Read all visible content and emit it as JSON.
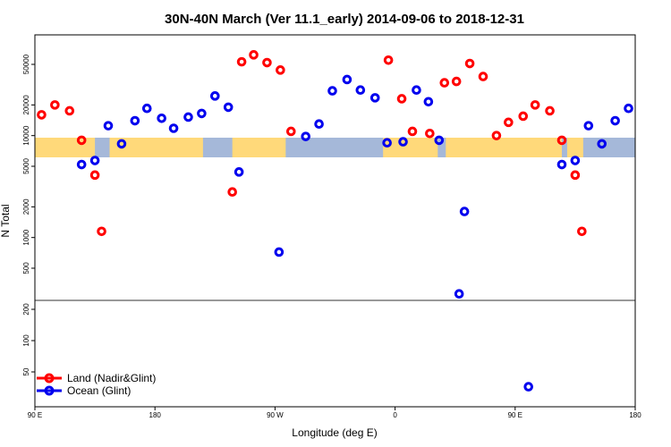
{
  "chart_data": {
    "type": "scatter",
    "title": "30N-40N March (Ver 11.1_early)   2014-09-06 to 2018-12-31",
    "xlabel": "Longitude (deg E)",
    "ylabel": "N Total",
    "xlim": [
      90,
      540
    ],
    "ylim": [
      25,
      90000
    ],
    "y_scale": "log-upper-linear-lower",
    "x_ticks": [
      {
        "value": 90,
        "label": "90 E"
      },
      {
        "value": 180,
        "label": "180"
      },
      {
        "value": 270,
        "label": "90 W"
      },
      {
        "value": 360,
        "label": "0"
      },
      {
        "value": 450,
        "label": "90 E"
      },
      {
        "value": 540,
        "label": "180"
      }
    ],
    "y_ticks_upper": [
      {
        "value": 500,
        "label": "500"
      },
      {
        "value": 1000,
        "label": "1000"
      },
      {
        "value": 2000,
        "label": "2000"
      },
      {
        "value": 5000,
        "label": "5000"
      },
      {
        "value": 10000,
        "label": "10000"
      },
      {
        "value": 20000,
        "label": "20000"
      },
      {
        "value": 50000,
        "label": "50000"
      }
    ],
    "y_ticks_lower": [
      {
        "value": 50,
        "label": "50"
      },
      {
        "value": 100,
        "label": "100"
      },
      {
        "value": 200,
        "label": "200"
      }
    ],
    "legend_position": "bottom-left",
    "series": [
      {
        "name": "Land (Nadir&Glint)",
        "color": "#ff0000",
        "points": [
          {
            "x": 95,
            "y": 16000
          },
          {
            "x": 105,
            "y": 20000
          },
          {
            "x": 116,
            "y": 17500
          },
          {
            "x": 125,
            "y": 9000
          },
          {
            "x": 135,
            "y": 4100
          },
          {
            "x": 140,
            "y": 1150
          },
          {
            "x": 238,
            "y": 2800
          },
          {
            "x": 245,
            "y": 53000
          },
          {
            "x": 254,
            "y": 62000
          },
          {
            "x": 264,
            "y": 52000
          },
          {
            "x": 274,
            "y": 44000
          },
          {
            "x": 282,
            "y": 11000
          },
          {
            "x": 355,
            "y": 55000
          },
          {
            "x": 365,
            "y": 23000
          },
          {
            "x": 373,
            "y": 11000
          },
          {
            "x": 386,
            "y": 10500
          },
          {
            "x": 397,
            "y": 33000
          },
          {
            "x": 406,
            "y": 34000
          },
          {
            "x": 416,
            "y": 51000
          },
          {
            "x": 426,
            "y": 38000
          },
          {
            "x": 436,
            "y": 10000
          },
          {
            "x": 445,
            "y": 13500
          },
          {
            "x": 456,
            "y": 15500
          },
          {
            "x": 465,
            "y": 20000
          },
          {
            "x": 476,
            "y": 17500
          },
          {
            "x": 485,
            "y": 9000
          },
          {
            "x": 495,
            "y": 4100
          },
          {
            "x": 500,
            "y": 1150
          }
        ]
      },
      {
        "name": "Ocean (Glint)",
        "color": "#0000ee",
        "points": [
          {
            "x": 125,
            "y": 5200
          },
          {
            "x": 135,
            "y": 5700
          },
          {
            "x": 145,
            "y": 12500
          },
          {
            "x": 155,
            "y": 8300
          },
          {
            "x": 165,
            "y": 14000
          },
          {
            "x": 174,
            "y": 18500
          },
          {
            "x": 185,
            "y": 14800
          },
          {
            "x": 194,
            "y": 11800
          },
          {
            "x": 205,
            "y": 15200
          },
          {
            "x": 215,
            "y": 16500
          },
          {
            "x": 225,
            "y": 24500
          },
          {
            "x": 235,
            "y": 19000
          },
          {
            "x": 243,
            "y": 4400
          },
          {
            "x": 273,
            "y": 720
          },
          {
            "x": 293,
            "y": 9800
          },
          {
            "x": 303,
            "y": 13000
          },
          {
            "x": 313,
            "y": 27500
          },
          {
            "x": 324,
            "y": 35500
          },
          {
            "x": 334,
            "y": 28000
          },
          {
            "x": 345,
            "y": 23500
          },
          {
            "x": 354,
            "y": 8500
          },
          {
            "x": 366,
            "y": 8700
          },
          {
            "x": 376,
            "y": 28000
          },
          {
            "x": 385,
            "y": 21500
          },
          {
            "x": 393,
            "y": 9000
          },
          {
            "x": 408,
            "y": 280
          },
          {
            "x": 412,
            "y": 1800
          },
          {
            "x": 460,
            "y": 36
          },
          {
            "x": 485,
            "y": 5200
          },
          {
            "x": 495,
            "y": 5700
          },
          {
            "x": 505,
            "y": 12500
          },
          {
            "x": 515,
            "y": 8300
          },
          {
            "x": 525,
            "y": 14000
          },
          {
            "x": 535,
            "y": 18500
          }
        ]
      }
    ],
    "land_mask_band": {
      "ocean_color": "#a5b8d9",
      "land_color": "#ffd97a",
      "land_intervals": [
        [
          90,
          135
        ],
        [
          146,
          216
        ],
        [
          238,
          278
        ],
        [
          351,
          392
        ],
        [
          398,
          485
        ],
        [
          489,
          501
        ]
      ]
    }
  }
}
